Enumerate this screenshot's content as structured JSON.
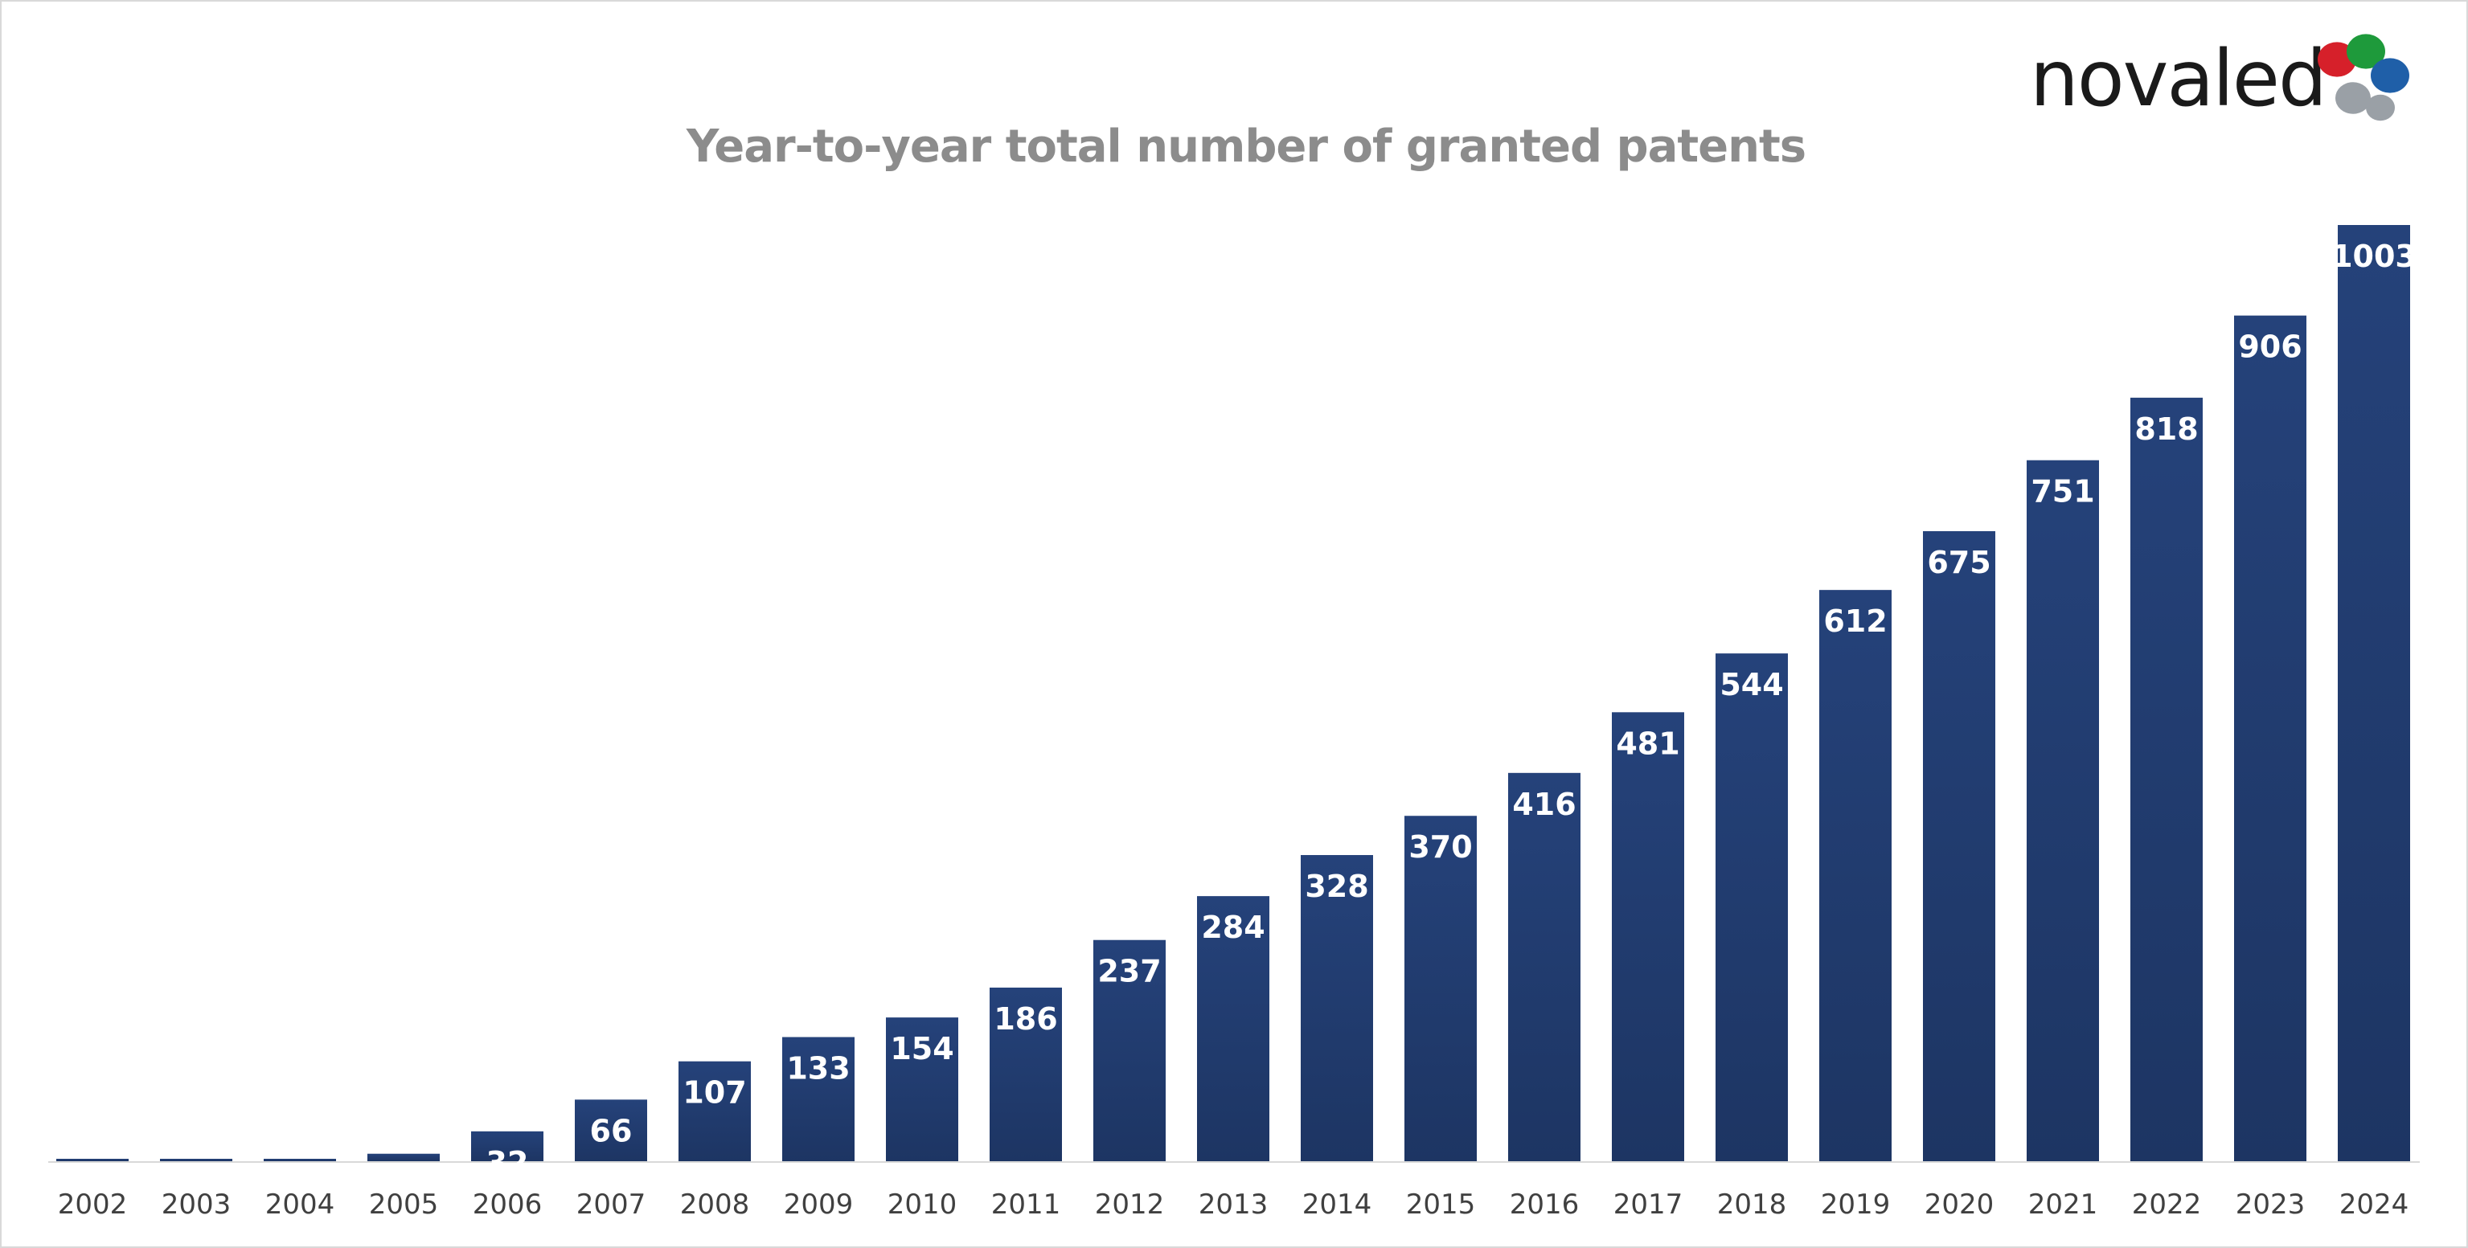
{
  "logo": {
    "text": "novaled",
    "colors": [
      "#d6202a",
      "#1e9a3b",
      "#1f5fa8",
      "#9aa0a6"
    ]
  },
  "chart_data": {
    "type": "bar",
    "title": "Year-to-year total number of granted patents",
    "xlabel": "",
    "ylabel": "",
    "categories": [
      "2002",
      "2003",
      "2004",
      "2005",
      "2006",
      "2007",
      "2008",
      "2009",
      "2010",
      "2011",
      "2012",
      "2013",
      "2014",
      "2015",
      "2016",
      "2017",
      "2018",
      "2019",
      "2020",
      "2021",
      "2022",
      "2023",
      "2024"
    ],
    "series": [
      {
        "values": [
          1,
          1,
          2,
          8,
          32,
          66,
          107,
          133,
          154,
          186,
          237,
          284,
          328,
          370,
          416,
          481,
          544,
          612,
          675,
          751,
          818,
          906,
          1003
        ],
        "data_labels": [
          "",
          "",
          "",
          "",
          "32",
          "66",
          "107",
          "133",
          "154",
          "186",
          "237",
          "284",
          "328",
          "370",
          "416",
          "481",
          "544",
          "612",
          "675",
          "751",
          "818",
          "906",
          "1003"
        ]
      }
    ],
    "ylim": [
      0,
      1003
    ],
    "grid": false,
    "legend": "none",
    "bar_color_top": "#25427a",
    "bar_color_bottom": "#1d3563"
  }
}
